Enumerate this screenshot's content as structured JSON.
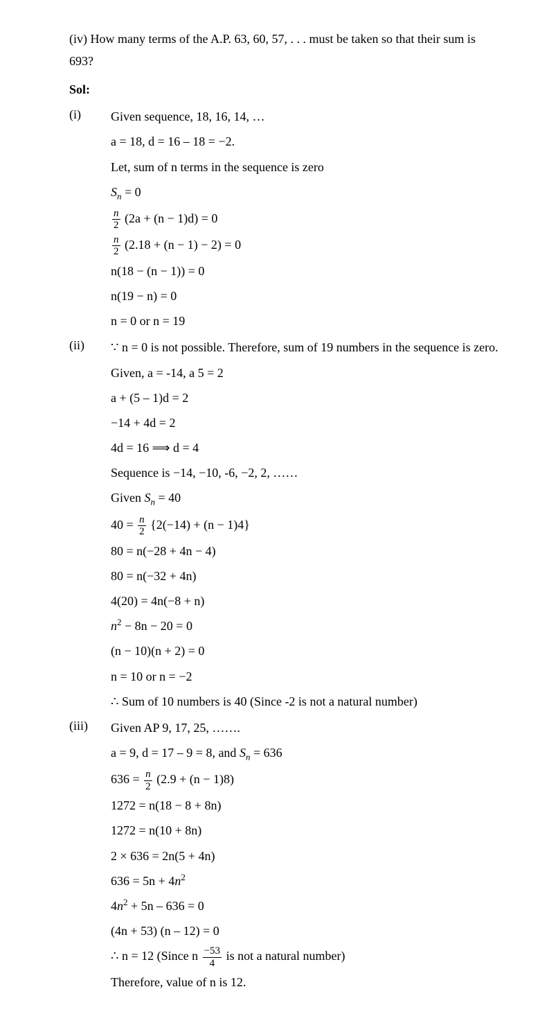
{
  "question": "(iv) How many terms of the A.P. 63, 60, 57, . . . must be taken so that their sum is 693?",
  "sol_label": "Sol:",
  "parts": {
    "i": {
      "num": "(i)",
      "lines": [
        "Given sequence, 18, 16, 14, …",
        "a = 18, d = 16 – 18 = −2.",
        "Let, sum of n terms in the sequence is zero",
        "S_n = 0",
        "FRAC_n_2 (2a + (n − 1)d) = 0",
        "FRAC_n_2 (2.18 + (n − 1) − 2) = 0",
        "n(18 − (n − 1)) = 0",
        "n(19 − n) = 0",
        "n = 0 or n = 19"
      ]
    },
    "ii": {
      "num": "(ii)",
      "lines": [
        "∵ n = 0 is not possible. Therefore, sum of 19 numbers in the sequence is zero.",
        "Given, a = -14, a 5 = 2",
        "a +  (5 – 1)d = 2",
        "−14 + 4d = 2",
        "4d = 16  ⟹ d = 4",
        "Sequence is −14, −10, -6, −2, 2, ……",
        "Given S_n = 40",
        "40 = FRAC_n_2 {2(−14) + (n − 1)4}",
        "80 = n(−28 + 4n − 4)",
        "80 = n(−32 + 4n)",
        "4(20) = 4n(−8 + n)",
        "n^2 − 8n − 20 = 0",
        "(n − 10)(n + 2) = 0",
        "n = 10 or n = −2",
        "∴ Sum of 10 numbers is 40 (Since -2 is not a natural number)"
      ]
    },
    "iii": {
      "num": "(iii)",
      "lines": [
        "Given AP 9, 17, 25, …….",
        "a = 9, d = 17 – 9 = 8, and S_n = 636",
        "636 = FRAC_n_2 (2.9 + (n − 1)8)",
        "1272 = n(18 − 8 + 8n)",
        "1272 = n(10 + 8n)",
        "2 × 636 = 2n(5 + 4n)",
        "636 = 5n + 4n^2",
        "4n^2 + 5n – 636 = 0",
        "(4n + 53) (n – 12) = 0",
        "∴ n = 12 (Since n FRAC_-53_4 is not a natural number)",
        "Therefore, value of n is 12."
      ]
    }
  }
}
